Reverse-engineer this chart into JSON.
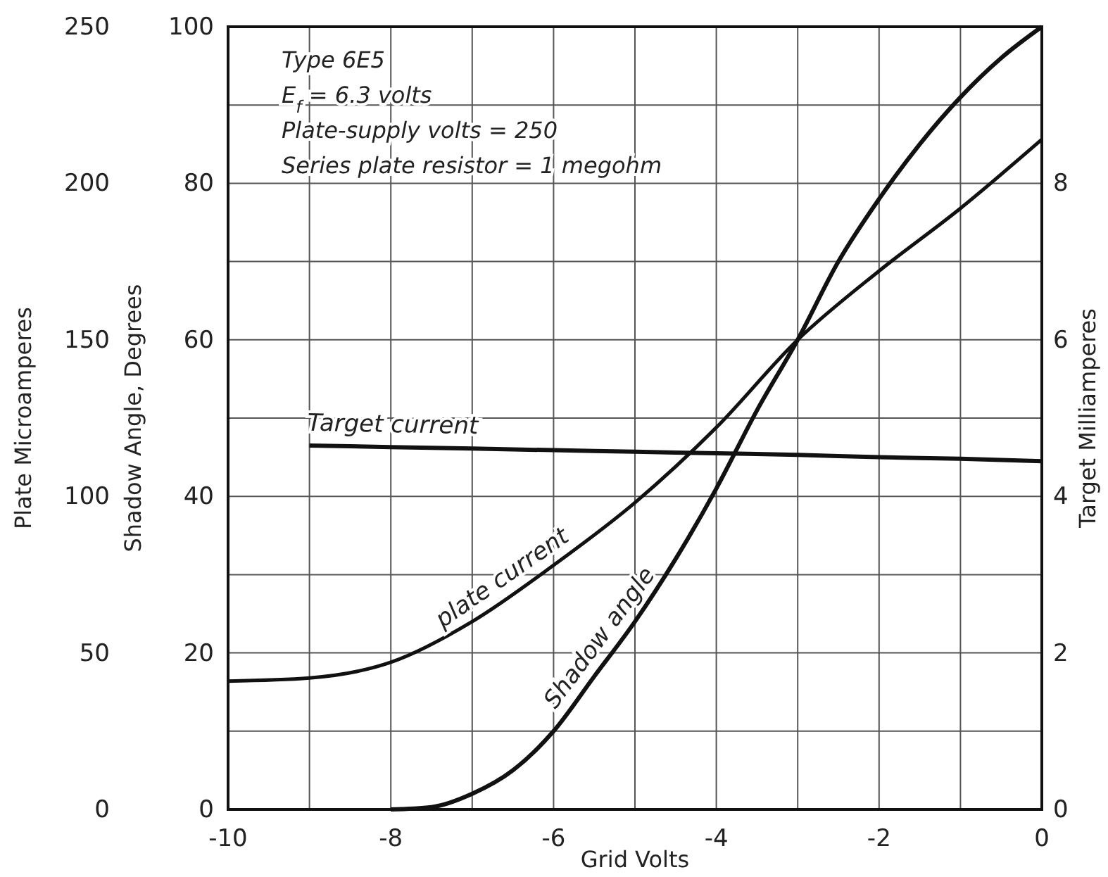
{
  "chart_data": {
    "type": "line",
    "xlabel": "Grid Volts",
    "ylabel": "Shadow Angle, Degrees",
    "y2label": "Target Milliamperes",
    "y3label": "Plate Microamperes",
    "annotations": [
      "Type 6E5",
      "E$_{f}$ = 6.3 volts",
      "Plate-supply volts = 250",
      "Series plate resistor = 1 megohm"
    ],
    "xlim": [
      -10,
      0
    ],
    "xticks": [
      -10,
      {
        "value": -9,
        "label": null
      },
      -8,
      {
        "value": -7,
        "label": null
      },
      -6,
      {
        "value": -5,
        "label": null
      },
      -4,
      {
        "value": -3,
        "label": null
      },
      -2,
      {
        "value": -1,
        "label": null
      },
      0
    ],
    "ylim": [
      0,
      100
    ],
    "yticks": [
      0,
      {
        "value": 10,
        "label": null
      },
      20,
      {
        "value": 30,
        "label": null
      },
      40,
      {
        "value": 50,
        "label": null
      },
      60,
      {
        "value": 70,
        "label": null
      },
      80,
      {
        "value": 90,
        "label": null
      },
      100
    ],
    "y2lim": [
      0,
      10
    ],
    "y2ticks": [
      0,
      2,
      4,
      6,
      8
    ],
    "y3lim": [
      0,
      250
    ],
    "y3ticks": [
      0,
      50,
      100,
      150,
      200,
      250
    ],
    "grid": true,
    "line_style": "solid",
    "marker": "none",
    "series": [
      {
        "name": "Target current",
        "color": "#111111",
        "axis": "y2",
        "x": [
          -9,
          -8,
          -7,
          -6,
          -5,
          -4,
          -3,
          -2,
          -1,
          0
        ],
        "values": [
          4.65,
          4.63,
          4.61,
          4.59,
          4.57,
          4.55,
          4.53,
          4.5,
          4.48,
          4.45
        ]
      },
      {
        "name": "plate current",
        "color": "#111111",
        "axis": "y3",
        "x": [
          -10,
          -9,
          -8,
          -7,
          -6,
          -5,
          -4,
          -3,
          -2,
          -1,
          0
        ],
        "values": [
          41,
          42,
          47,
          60,
          78,
          98,
          122,
          150,
          172,
          192,
          214
        ]
      },
      {
        "name": "Shadow angle",
        "color": "#111111",
        "x": [
          -8,
          -7.5,
          -7,
          -6.5,
          -6,
          -5.5,
          -5,
          -4.5,
          -4,
          -3.5,
          -3,
          -2.5,
          -2,
          -1.5,
          -1,
          -0.5,
          0
        ],
        "values": [
          0,
          0.3,
          2,
          5,
          10,
          17,
          24,
          32,
          41,
          51,
          60,
          70,
          78,
          85,
          91,
          96,
          100
        ]
      }
    ]
  }
}
